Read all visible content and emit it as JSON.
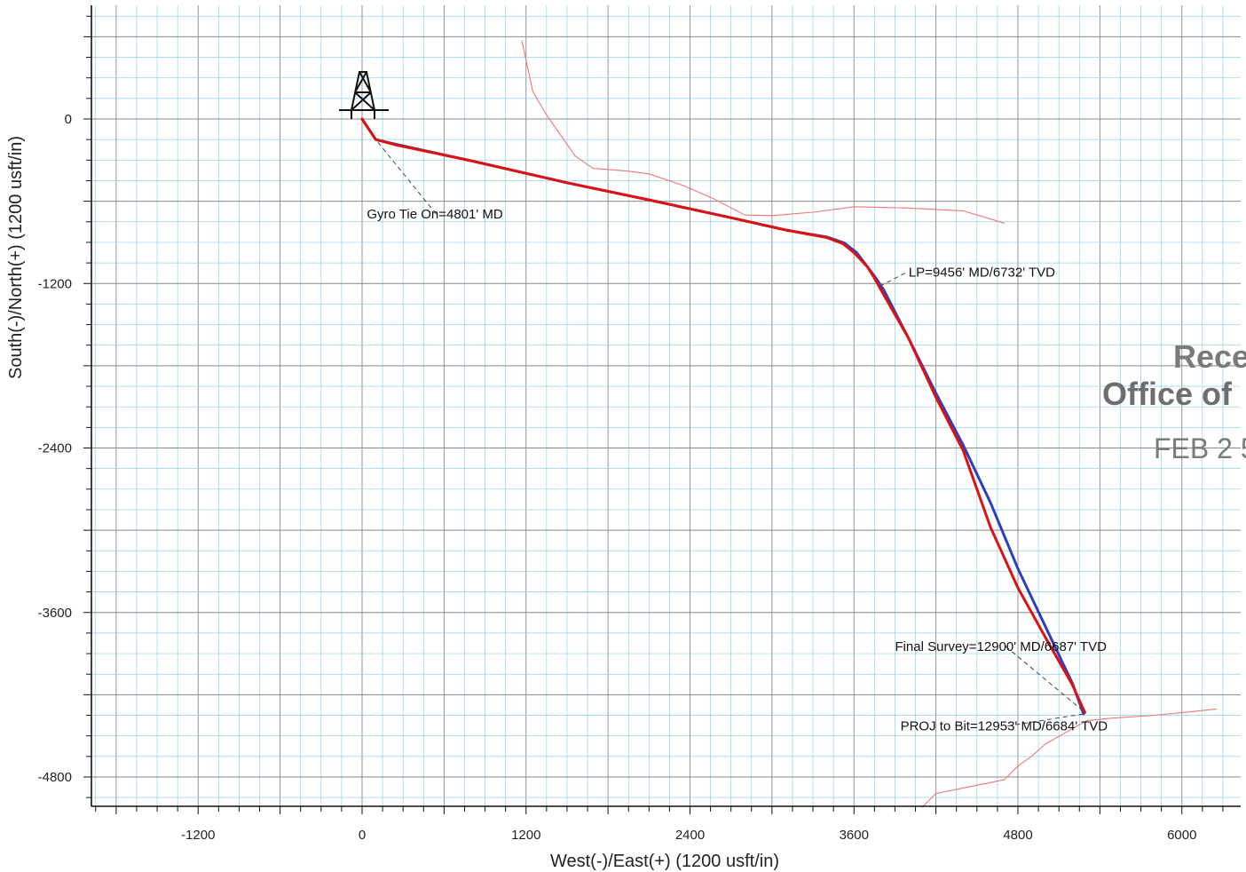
{
  "chart_data": {
    "type": "line",
    "xlabel": "West(-)/East(+) (1200 usft/in)",
    "ylabel": "South(-)/North(+) (1200 usft/in)",
    "x_ticks": [
      -1200,
      0,
      1200,
      2400,
      3600,
      4800,
      6000
    ],
    "y_ticks": [
      0,
      -1200,
      -2400,
      -3600,
      -4800
    ],
    "xlim": [
      -2000,
      6400
    ],
    "ylim": [
      -5020,
      830
    ],
    "grid": true,
    "series": [
      {
        "color": "#2d3fbf",
        "x": [
          0,
          100,
          250,
          800,
          1500,
          2100,
          2700,
          3100,
          3400,
          3530,
          3620,
          3700,
          3760,
          3820,
          4000,
          4200,
          4400,
          4600,
          4800,
          5000,
          5200,
          5280
        ],
        "y": [
          0,
          -150,
          -185,
          -305,
          -465,
          -590,
          -720,
          -810,
          -860,
          -905,
          -975,
          -1080,
          -1160,
          -1250,
          -1600,
          -2000,
          -2380,
          -2800,
          -3280,
          -3700,
          -4120,
          -4340
        ]
      },
      {
        "color": "#dd1111",
        "x": [
          0,
          100,
          250,
          800,
          1500,
          2100,
          2700,
          3100,
          3400,
          3520,
          3600,
          3700,
          3750,
          3800,
          4000,
          4200,
          4400,
          4500,
          4600,
          4800,
          5000,
          5200,
          5290
        ],
        "y": [
          0,
          -150,
          -190,
          -305,
          -465,
          -590,
          -720,
          -810,
          -865,
          -910,
          -975,
          -1080,
          -1160,
          -1250,
          -1600,
          -2030,
          -2420,
          -2700,
          -2980,
          -3420,
          -3780,
          -4130,
          -4330
        ]
      },
      {
        "color": "#ee7777",
        "x": [
          1170,
          1250,
          1350,
          1560,
          1690,
          1950,
          2100,
          2350,
          2580,
          2800,
          3000,
          3300,
          3600,
          4000,
          4400,
          4700
        ],
        "y": [
          570,
          200,
          30,
          -270,
          -360,
          -380,
          -400,
          -485,
          -585,
          -700,
          -705,
          -680,
          -640,
          -650,
          -670,
          -760
        ]
      },
      {
        "color": "#ee7777",
        "x": [
          4100,
          4200,
          4400,
          4600,
          4700,
          4800,
          4900,
          5000,
          5300,
          5500,
          5800,
          6100,
          6250
        ],
        "y": [
          -5020,
          -4920,
          -4880,
          -4840,
          -4820,
          -4720,
          -4650,
          -4560,
          -4390,
          -4370,
          -4350,
          -4320,
          -4305
        ]
      }
    ],
    "annotations": [
      {
        "text": "Gyro Tie On=4801' MD",
        "x": 100,
        "y": -150,
        "label_x": 35,
        "label_y": -725
      },
      {
        "text": "LP=9456' MD/6732' TVD",
        "x": 3770,
        "y": -1230,
        "label_x": 4000,
        "label_y": -1150
      },
      {
        "text": "Final Survey=12900' MD/6687' TVD",
        "x": 5280,
        "y": -4320,
        "label_x": 3900,
        "label_y": -3880
      },
      {
        "text": "PROJ to Bit=12953' MD/6684' TVD",
        "x": 5280,
        "y": -4340,
        "label_x": 3940,
        "label_y": -4460
      }
    ],
    "rig_symbol": {
      "x": 0,
      "y": 0,
      "icon": "drilling-rig-icon"
    }
  },
  "stamp": {
    "line1": "Rece",
    "line2": "Office of",
    "line3": "FEB 2 5",
    "color": "#7a7a7a"
  },
  "colors": {
    "major_grid": "#888888",
    "minor_grid": "#8fd0ea",
    "axis": "#111111",
    "background": "#ffffff"
  }
}
